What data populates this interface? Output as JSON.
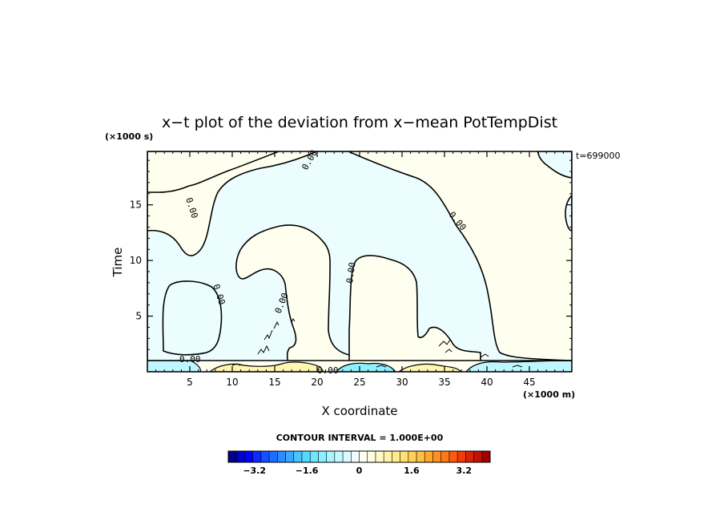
{
  "chart_data": {
    "type": "contour",
    "title": "x−t plot of the deviation from x−mean PotTempDist",
    "xlabel": "X coordinate",
    "ylabel": "Time",
    "x_unit": "(×1000 m)",
    "y_unit": "(×1000 s)",
    "time_label": "t=699000",
    "xlim": [
      0,
      50
    ],
    "ylim": [
      0,
      19.8
    ],
    "x_ticks": [
      5,
      10,
      15,
      20,
      25,
      30,
      35,
      40,
      45
    ],
    "x_tick_labels": [
      "5",
      "10",
      "15",
      "20",
      "25",
      "30",
      "35",
      "40",
      "45"
    ],
    "y_ticks": [
      5,
      10,
      15
    ],
    "y_tick_labels": [
      "5",
      "10",
      "15"
    ],
    "contour_label": "0.00",
    "contour_interval_text": "CONTOUR INTERVAL = 1.000E+00",
    "colorbar": {
      "range": [
        -4,
        4
      ],
      "ticks": [
        -3.2,
        -1.6,
        0,
        1.6,
        3.2
      ],
      "tick_labels": [
        "−3.2",
        "−1.6",
        "0",
        "1.6",
        "3.2"
      ],
      "colors": [
        "#00008b",
        "#0000d0",
        "#0000ff",
        "#0a2cff",
        "#1450ff",
        "#1e6eff",
        "#2a8cff",
        "#38a8ff",
        "#46c4ff",
        "#56d8ff",
        "#6ee6ff",
        "#8cefff",
        "#a8f4ff",
        "#c4f8ff",
        "#ddfbff",
        "#f0fdff",
        "#fffff2",
        "#fffce0",
        "#fff8c4",
        "#fff2a8",
        "#ffeb8c",
        "#ffe070",
        "#ffd058",
        "#ffbf40",
        "#ffa830",
        "#ff9020",
        "#ff7818",
        "#ff5a10",
        "#f03c08",
        "#d82404",
        "#c01400",
        "#a00000"
      ]
    },
    "regions": [
      {
        "sign": "positive",
        "color": "#fffff0"
      },
      {
        "sign": "negative",
        "color": "#ecfdff"
      },
      {
        "sign": "positive_strong",
        "color": "#fff6b0"
      },
      {
        "sign": "negative_strong",
        "color": "#8eefff"
      }
    ]
  }
}
